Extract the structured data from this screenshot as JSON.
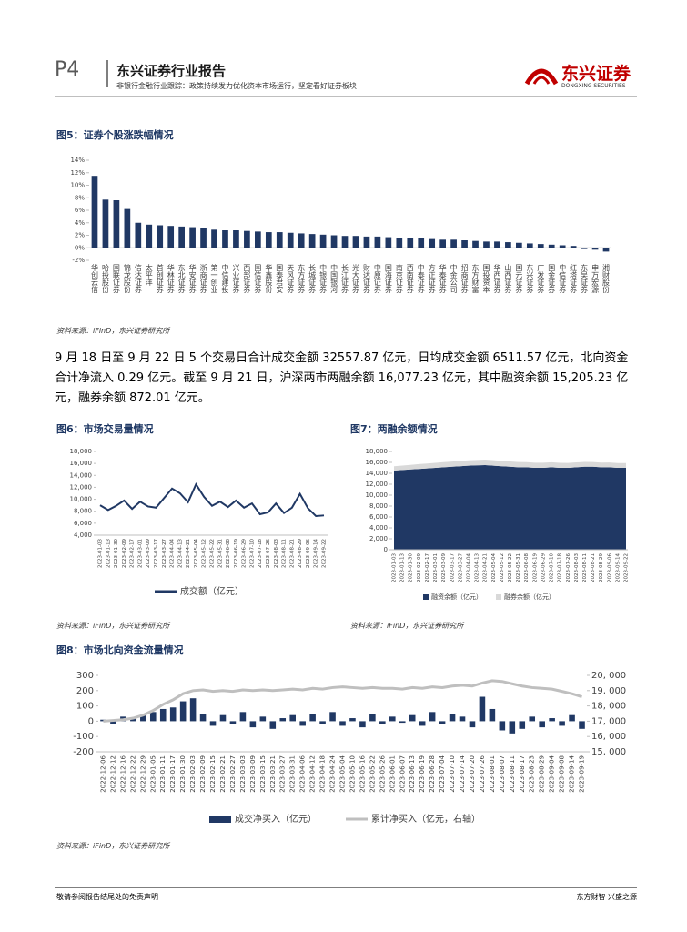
{
  "header": {
    "page": "P4",
    "title": "东兴证券行业报告",
    "subtitle": "非银行金融行业跟踪：政策持续发力优化资本市场运行，坚定看好证券板块",
    "logo": "东兴证券",
    "logo_en": "DONGXING SECURITIES"
  },
  "text": {
    "paragraph": "9 月 18 日至 9 月 22 日 5 个交易日合计成交金额 32557.87 亿元，日均成交金额 6511.57 亿元，北向资金合计净流入 0.29 亿元。截至 9 月 21 日，沪深两市两融余额 16,077.23 亿元，其中融资余额 15,205.23 亿元，融券余额 872.01 亿元。"
  },
  "footer": {
    "left": "敬请参阅报告结尾处的免责声明",
    "right": "东方财智 兴盛之源"
  },
  "chart_data": [
    {
      "type": "bar",
      "title": "图5：证券个股涨跌幅情况",
      "source": "资料来源：iFinD，东兴证券研究所",
      "color": "#203864",
      "categories": [
        "华创云信",
        "哈投股份",
        "国联证券",
        "锦龙股份",
        "信达证券",
        "太平洋",
        "首创证券",
        "华林证券",
        "东北证券",
        "华安证券",
        "浙商证券",
        "第一创业",
        "中信建投",
        "兴业证券",
        "西部证券",
        "国信证券",
        "华鑫股份",
        "国泰君安",
        "天风证券",
        "东方证券",
        "长城证券",
        "中银证券",
        "中国银河",
        "长江证券",
        "光大证券",
        "财达证券",
        "中原证券",
        "国海证券",
        "南京证券",
        "西南证券",
        "中泰证券",
        "方正证券",
        "华泰证券",
        "中金公司",
        "招商证券",
        "东方财富",
        "国投资本",
        "华西证券",
        "山西证券",
        "国元证券",
        "东兴证券",
        "广发证券",
        "国金证券",
        "中信证券",
        "红塔证券",
        "东吴证券",
        "申万宏源",
        "湘财股份"
      ],
      "values": [
        11.5,
        7.7,
        7.6,
        6.2,
        4.0,
        3.7,
        3.6,
        3.5,
        3.4,
        3.3,
        3.1,
        2.9,
        2.8,
        2.8,
        2.7,
        2.6,
        2.5,
        2.5,
        2.4,
        2.3,
        2.2,
        2.1,
        2.0,
        1.9,
        1.9,
        1.8,
        1.8,
        1.7,
        1.6,
        1.6,
        1.5,
        1.4,
        1.3,
        1.3,
        1.2,
        1.1,
        1.0,
        1.0,
        0.9,
        0.8,
        0.7,
        0.6,
        0.5,
        0.4,
        0.3,
        -0.2,
        -0.3,
        -0.6
      ],
      "ylim": [
        -2,
        14
      ],
      "yticks": [
        {
          "value": -2,
          "label": "-2%"
        },
        {
          "value": 0,
          "label": "0%"
        },
        {
          "value": 2,
          "label": "2%"
        },
        {
          "value": 4,
          "label": "4%"
        },
        {
          "value": 6,
          "label": "6%"
        },
        {
          "value": 8,
          "label": "8%"
        },
        {
          "value": 10,
          "label": "10%"
        },
        {
          "value": 12,
          "label": "12%"
        },
        {
          "value": 14,
          "label": "14%"
        }
      ]
    },
    {
      "type": "line",
      "title": "图6：市场交易量情况",
      "source": "资料来源：iFinD，东兴证券研究所",
      "categories": [
        "2023-01-03",
        "2023-01-13",
        "2023-01-30",
        "2023-02-09",
        "2023-02-17",
        "2023-03-01",
        "2023-03-09",
        "2023-03-17",
        "2023-03-27",
        "2023-04-04",
        "2023-04-13",
        "2023-04-21",
        "2023-05-04",
        "2023-05-12",
        "2023-05-22",
        "2023-05-31",
        "2023-06-08",
        "2023-06-19",
        "2023-06-29",
        "2023-07-10",
        "2023-07-18",
        "2023-07-26",
        "2023-08-03",
        "2023-08-11",
        "2023-08-21",
        "2023-08-29",
        "2023-09-06",
        "2023-09-14",
        "2023-09-22"
      ],
      "series": [
        {
          "name": "成交额（亿元）",
          "color": "#203864",
          "values": [
            9000,
            8200,
            8900,
            9800,
            8400,
            9600,
            8800,
            8600,
            10200,
            11800,
            11000,
            9500,
            12500,
            10400,
            8900,
            9600,
            8700,
            9800,
            8600,
            9300,
            7500,
            7800,
            9300,
            7700,
            8600,
            10900,
            8500,
            7200,
            7300
          ]
        }
      ],
      "ylim": [
        4000,
        18000
      ],
      "yticks": [
        {
          "value": 4000,
          "label": "4,000"
        },
        {
          "value": 6000,
          "label": "6,000"
        },
        {
          "value": 8000,
          "label": "8,000"
        },
        {
          "value": 10000,
          "label": "10,000"
        },
        {
          "value": 12000,
          "label": "12,000"
        },
        {
          "value": 14000,
          "label": "14,000"
        },
        {
          "value": 16000,
          "label": "16,000"
        },
        {
          "value": 18000,
          "label": "18,000"
        }
      ]
    },
    {
      "type": "area",
      "title": "图7：两融余额情况",
      "source": "资料来源：iFinD，东兴证券研究所",
      "categories": [
        "2023-01-03",
        "2023-01-13",
        "2023-01-30",
        "2023-02-09",
        "2023-02-17",
        "2023-03-01",
        "2023-03-09",
        "2023-03-17",
        "2023-03-27",
        "2023-04-04",
        "2023-04-13",
        "2023-04-21",
        "2023-05-04",
        "2023-05-12",
        "2023-05-22",
        "2023-05-31",
        "2023-06-08",
        "2023-06-19",
        "2023-06-29",
        "2023-07-10",
        "2023-07-18",
        "2023-07-26",
        "2023-08-03",
        "2023-08-11",
        "2023-08-21",
        "2023-08-29",
        "2023-09-06",
        "2023-09-14",
        "2023-09-22"
      ],
      "series": [
        {
          "name": "融资余额（亿元）",
          "color": "#203864",
          "values": [
            14500,
            14600,
            14700,
            14800,
            14900,
            15000,
            15100,
            15200,
            15300,
            15400,
            15450,
            15500,
            15400,
            15300,
            15200,
            15100,
            15100,
            15000,
            15000,
            15100,
            15000,
            15000,
            15100,
            15200,
            15200,
            15100,
            15100,
            15000,
            15000
          ]
        },
        {
          "name": "融券余额（亿元）",
          "color": "#d9d9d9",
          "values": [
            800,
            820,
            850,
            880,
            900,
            920,
            940,
            950,
            960,
            980,
            990,
            1000,
            990,
            980,
            970,
            960,
            950,
            940,
            930,
            920,
            910,
            900,
            890,
            880,
            870,
            860,
            870,
            870,
            870
          ]
        }
      ],
      "ylim": [
        0,
        18000
      ],
      "yticks": [
        0,
        {
          "value": 2000,
          "label": "2,000"
        },
        {
          "value": 4000,
          "label": "4,000"
        },
        {
          "value": 6000,
          "label": "6,000"
        },
        {
          "value": 8000,
          "label": "8,000"
        },
        {
          "value": 10000,
          "label": "10,000"
        },
        {
          "value": 12000,
          "label": "12,000"
        },
        {
          "value": 14000,
          "label": "14,000"
        },
        {
          "value": 16000,
          "label": "16,000"
        },
        {
          "value": 18000,
          "label": "18,000"
        }
      ]
    },
    {
      "type": "combo",
      "title": "图8：市场北向资金流量情况",
      "source": "资料来源：iFinD，东兴证券研究所",
      "categories": [
        "2022-12-06",
        "2022-12-12",
        "2022-12-16",
        "2022-12-22",
        "2022-12-29",
        "2023-01-05",
        "2023-01-11",
        "2023-01-17",
        "2023-01-30",
        "2023-02-03",
        "2023-02-09",
        "2023-02-15",
        "2023-02-21",
        "2023-02-27",
        "2023-03-03",
        "2023-03-09",
        "2023-03-15",
        "2023-03-21",
        "2023-03-27",
        "2023-03-31",
        "2023-04-06",
        "2023-04-12",
        "2023-04-18",
        "2023-04-24",
        "2023-05-04",
        "2023-05-10",
        "2023-05-16",
        "2023-05-22",
        "2023-05-26",
        "2023-06-01",
        "2023-06-07",
        "2023-06-13",
        "2023-06-19",
        "2023-06-28",
        "2023-07-04",
        "2023-07-10",
        "2023-07-14",
        "2023-07-20",
        "2023-07-26",
        "2023-08-01",
        "2023-08-07",
        "2023-08-11",
        "2023-08-17",
        "2023-08-23",
        "2023-08-29",
        "2023-09-04",
        "2023-09-08",
        "2023-09-14",
        "2023-09-19"
      ],
      "series": [
        {
          "name": "成交净买入（亿元）",
          "type": "bar",
          "color": "#203864",
          "values": [
            10,
            -20,
            30,
            20,
            40,
            60,
            80,
            90,
            130,
            150,
            50,
            -30,
            40,
            -20,
            60,
            -40,
            30,
            -50,
            20,
            40,
            -30,
            50,
            -20,
            60,
            -30,
            20,
            -40,
            50,
            -20,
            30,
            -10,
            40,
            -30,
            60,
            -20,
            50,
            30,
            -40,
            160,
            80,
            -60,
            -80,
            -50,
            30,
            -40,
            20,
            -30,
            40,
            -50
          ]
        },
        {
          "name": "累计净买入（亿元，右轴）",
          "type": "line",
          "axis": "y2",
          "color": "#bfbfbf",
          "values": [
            17000,
            17050,
            17100,
            17200,
            17400,
            17700,
            18100,
            18400,
            18800,
            19000,
            19050,
            18950,
            19000,
            18950,
            19050,
            19000,
            19050,
            19000,
            19050,
            19100,
            19050,
            19150,
            19100,
            19200,
            19250,
            19200,
            19150,
            19200,
            19150,
            19150,
            19100,
            19200,
            19150,
            19250,
            19200,
            19300,
            19350,
            19300,
            19500,
            19650,
            19600,
            19450,
            19300,
            19200,
            19150,
            19100,
            18950,
            18800,
            18600
          ]
        }
      ],
      "ylim": [
        -200,
        300
      ],
      "yticks": [
        -200,
        -100,
        0,
        100,
        200,
        300
      ],
      "y2lim": [
        15000,
        20000
      ],
      "y2ticks": [
        {
          "value": 15000,
          "label": "15, 000"
        },
        {
          "value": 16000,
          "label": "16, 000"
        },
        {
          "value": 17000,
          "label": "17, 000"
        },
        {
          "value": 18000,
          "label": "18, 000"
        },
        {
          "value": 19000,
          "label": "19, 000"
        },
        {
          "value": 20000,
          "label": "20, 000"
        }
      ]
    }
  ]
}
